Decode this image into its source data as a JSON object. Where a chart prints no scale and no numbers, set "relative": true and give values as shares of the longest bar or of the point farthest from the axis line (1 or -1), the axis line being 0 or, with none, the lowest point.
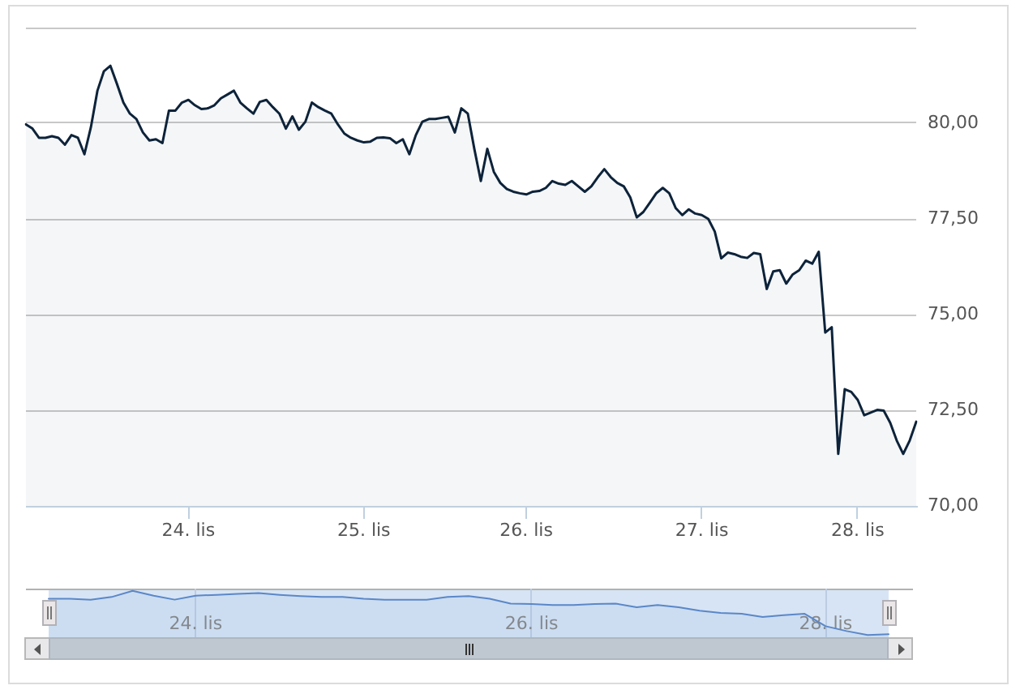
{
  "chart_data": [
    {
      "type": "area",
      "categories": [
        null,
        null,
        null,
        null,
        null,
        null,
        null,
        null,
        null,
        null,
        null,
        null,
        null,
        null,
        null,
        null,
        null,
        null,
        null,
        null,
        null,
        null,
        null,
        null,
        null,
        "24. lis",
        null,
        null,
        null,
        null,
        null,
        null,
        null,
        null,
        null,
        null,
        null,
        null,
        null,
        null,
        null,
        null,
        null,
        null,
        null,
        null,
        null,
        null,
        null,
        null,
        null,
        null,
        "25. lis",
        null,
        null,
        null,
        null,
        null,
        null,
        null,
        null,
        null,
        null,
        null,
        null,
        null,
        null,
        null,
        null,
        null,
        null,
        null,
        null,
        null,
        null,
        null,
        null,
        "26. lis",
        null,
        null,
        null,
        null,
        null,
        null,
        null,
        null,
        null,
        null,
        null,
        null,
        null,
        null,
        null,
        null,
        null,
        null,
        null,
        null,
        null,
        null,
        null,
        null,
        null,
        null,
        "27. lis",
        null,
        null,
        null,
        null,
        null,
        null,
        null,
        null,
        null,
        null,
        null,
        null,
        null,
        null,
        null,
        null,
        null,
        null,
        null,
        null,
        null,
        null,
        null,
        "28. lis",
        null,
        null,
        null,
        null,
        null,
        null,
        null,
        null,
        null
      ],
      "values": [
        79.97,
        79.86,
        79.62,
        79.62,
        79.66,
        79.62,
        79.44,
        79.69,
        79.62,
        79.19,
        79.9,
        80.85,
        81.36,
        81.5,
        81.03,
        80.54,
        80.25,
        80.11,
        79.76,
        79.55,
        79.58,
        79.48,
        80.33,
        80.33,
        80.54,
        80.61,
        80.47,
        80.37,
        80.39,
        80.47,
        80.65,
        80.75,
        80.85,
        80.54,
        80.39,
        80.25,
        80.56,
        80.61,
        80.42,
        80.25,
        79.86,
        80.18,
        79.83,
        80.04,
        80.54,
        80.42,
        80.33,
        80.25,
        79.97,
        79.73,
        79.62,
        79.55,
        79.5,
        79.52,
        79.62,
        79.63,
        79.61,
        79.48,
        79.58,
        79.19,
        79.69,
        80.04,
        80.11,
        80.11,
        80.14,
        80.17,
        79.76,
        80.39,
        80.25,
        79.33,
        78.49,
        79.33,
        78.73,
        78.44,
        78.28,
        78.21,
        78.17,
        78.14,
        78.21,
        78.23,
        78.31,
        78.49,
        78.42,
        78.39,
        78.49,
        78.35,
        78.21,
        78.35,
        78.59,
        78.8,
        78.59,
        78.44,
        78.35,
        78.06,
        77.54,
        77.68,
        77.92,
        78.17,
        78.31,
        78.17,
        77.78,
        77.6,
        77.75,
        77.64,
        77.6,
        77.5,
        77.17,
        76.47,
        76.62,
        76.58,
        76.51,
        76.48,
        76.61,
        76.58,
        75.67,
        76.13,
        76.16,
        75.81,
        76.05,
        76.16,
        76.41,
        76.33,
        76.64,
        74.53,
        74.67,
        71.36,
        73.05,
        72.98,
        72.77,
        72.37,
        72.44,
        72.51,
        72.49,
        72.17,
        71.71,
        71.36,
        71.71,
        72.2
      ],
      "color": "#0d233a",
      "ylim": [
        70,
        82.5
      ],
      "yticks": [
        {
          "value": 70,
          "label": "70,00"
        },
        {
          "value": 72.5,
          "label": "72,50"
        },
        {
          "value": 75,
          "label": "75,00"
        },
        {
          "value": 77.5,
          "label": "77,50"
        },
        {
          "value": 80,
          "label": "80,00"
        },
        {
          "value": 82.5,
          "label": null
        }
      ],
      "grid": "y"
    },
    {
      "type": "area",
      "relative": true,
      "categories": [
        null,
        null,
        null,
        null,
        null,
        null,
        null,
        "24. lis",
        null,
        null,
        null,
        null,
        null,
        null,
        null,
        null,
        null,
        null,
        null,
        null,
        null,
        null,
        null,
        "26. lis",
        null,
        null,
        null,
        null,
        null,
        null,
        null,
        null,
        null,
        null,
        null,
        null,
        null,
        "28. lis",
        null,
        null,
        null
      ],
      "values": [
        0.82,
        0.82,
        0.8,
        0.86,
        1,
        0.89,
        0.8,
        0.89,
        0.91,
        0.93,
        0.95,
        0.91,
        0.88,
        0.86,
        0.86,
        0.82,
        0.8,
        0.8,
        0.8,
        0.86,
        0.88,
        0.82,
        0.71,
        0.7,
        0.68,
        0.68,
        0.7,
        0.71,
        0.63,
        0.68,
        0.63,
        0.55,
        0.5,
        0.48,
        0.41,
        0.45,
        0.48,
        0.2,
        0.09,
        0,
        0.02
      ],
      "color": "#5b87c7",
      "grid": "x"
    }
  ]
}
